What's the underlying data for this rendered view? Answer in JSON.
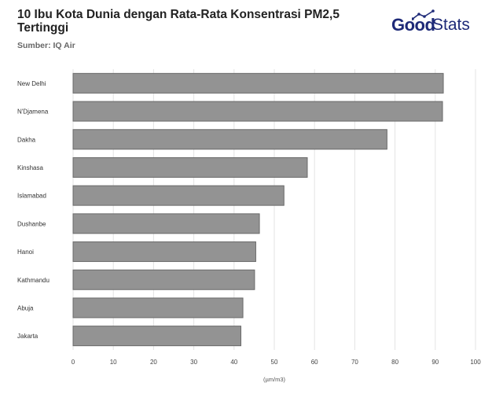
{
  "header": {
    "title": "10 Ibu Kota Dunia dengan Rata-Rata Konsentrasi PM2,5 Tertinggi",
    "subtitle": "Sumber: IQ Air"
  },
  "logo": {
    "part1": "Good",
    "part2": "Stats",
    "color": "#1e2a78",
    "icon": "trend-sparkline-icon"
  },
  "chart_data": {
    "type": "bar",
    "orientation": "horizontal",
    "categories": [
      "New Delhi",
      "N'Djamena",
      "Dakha",
      "Kinshasa",
      "Islamabad",
      "Dushanbe",
      "Hanoi",
      "Kathmandu",
      "Abuja",
      "Jakarta"
    ],
    "values": [
      92.0,
      91.8,
      78.0,
      58.2,
      52.4,
      46.3,
      45.4,
      45.1,
      42.2,
      41.7
    ],
    "xlabel": "(µm/m3)",
    "xlim": [
      0,
      100
    ],
    "xticks": [
      0,
      10,
      20,
      30,
      40,
      50,
      60,
      70,
      80,
      90,
      100
    ],
    "grid": true,
    "bar_color": "#939393"
  }
}
